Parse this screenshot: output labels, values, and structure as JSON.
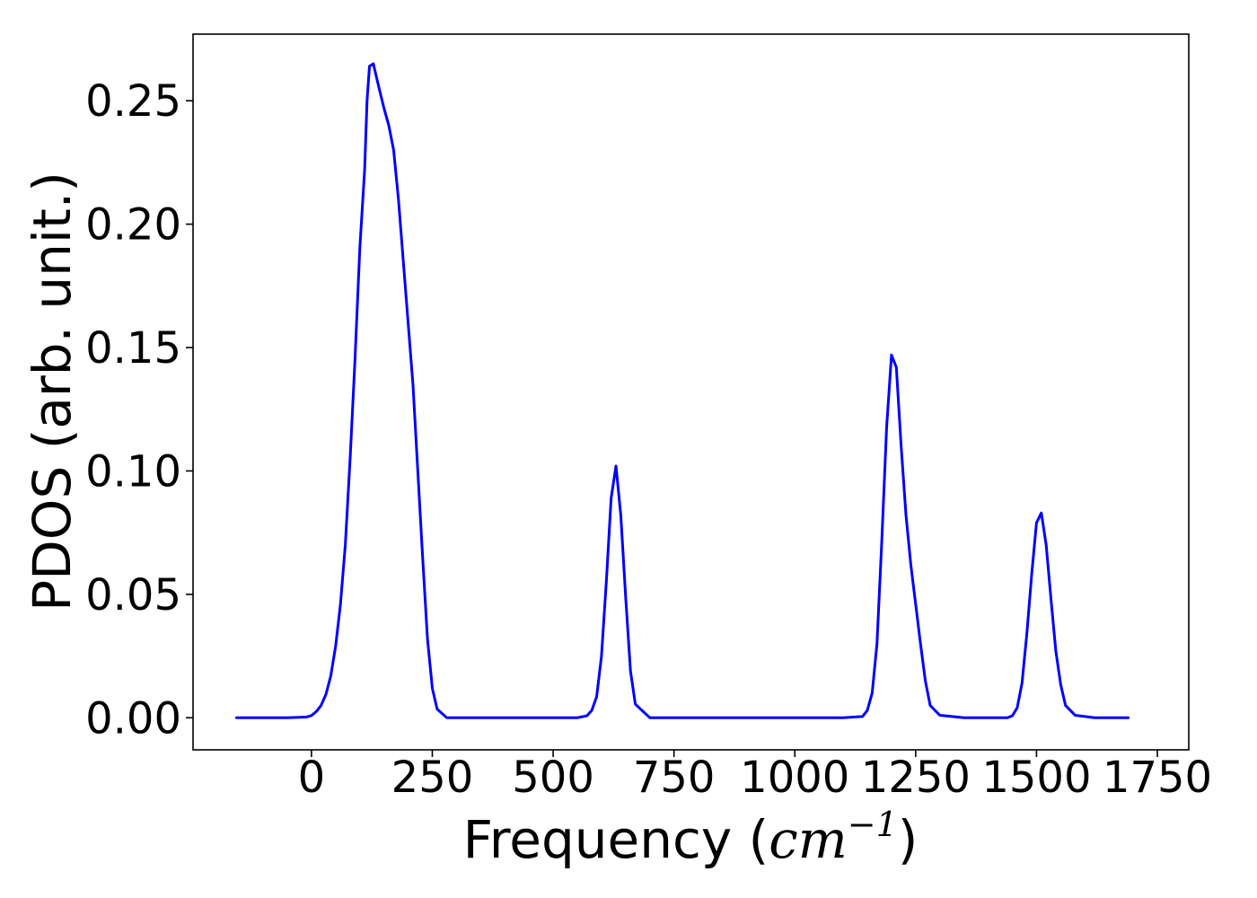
{
  "chart_data": {
    "type": "line",
    "title": "",
    "xlabel": {
      "prefix": "Frequency (",
      "unit_base": "cm",
      "unit_exponent": "−1",
      "suffix": ")"
    },
    "ylabel": "PDOS (arb. unit.)",
    "xlim": [
      -245,
      1815
    ],
    "ylim": [
      -0.013,
      0.277
    ],
    "xticks": [
      0,
      250,
      500,
      750,
      1000,
      1250,
      1500,
      1750
    ],
    "xtick_labels": [
      "0",
      "250",
      "500",
      "750",
      "1000",
      "1250",
      "1500",
      "1750"
    ],
    "yticks": [
      0.0,
      0.05,
      0.1,
      0.15,
      0.2,
      0.25
    ],
    "ytick_labels": [
      "0.00",
      "0.05",
      "0.10",
      "0.15",
      "0.20",
      "0.25"
    ],
    "grid": false,
    "legend": "none",
    "series": [
      {
        "color": "#0000ff",
        "x": [
          -155,
          -100,
          -50,
          -10,
          0,
          10,
          20,
          30,
          40,
          50,
          60,
          70,
          80,
          90,
          100,
          110,
          115,
          120,
          128,
          140,
          150,
          160,
          170,
          180,
          190,
          200,
          210,
          220,
          230,
          240,
          250,
          260,
          280,
          350,
          450,
          550,
          570,
          580,
          590,
          600,
          610,
          620,
          630,
          640,
          650,
          660,
          670,
          700,
          800,
          900,
          1000,
          1100,
          1140,
          1150,
          1160,
          1170,
          1180,
          1190,
          1200,
          1210,
          1220,
          1230,
          1240,
          1250,
          1260,
          1270,
          1280,
          1300,
          1350,
          1400,
          1440,
          1450,
          1460,
          1470,
          1480,
          1490,
          1500,
          1510,
          1520,
          1530,
          1540,
          1550,
          1560,
          1580,
          1620,
          1690
        ],
        "y": [
          0.0,
          0.0,
          0.0,
          0.0003,
          0.0009,
          0.0025,
          0.005,
          0.0095,
          0.017,
          0.029,
          0.046,
          0.07,
          0.105,
          0.145,
          0.19,
          0.222,
          0.25,
          0.264,
          0.265,
          0.255,
          0.247,
          0.24,
          0.23,
          0.21,
          0.185,
          0.16,
          0.135,
          0.1,
          0.065,
          0.032,
          0.012,
          0.0035,
          0.0,
          0.0,
          0.0,
          0.0,
          0.0008,
          0.003,
          0.0085,
          0.025,
          0.055,
          0.089,
          0.102,
          0.082,
          0.049,
          0.019,
          0.0055,
          0.0,
          0.0,
          0.0,
          0.0,
          0.0,
          0.0005,
          0.003,
          0.01,
          0.03,
          0.072,
          0.118,
          0.147,
          0.142,
          0.11,
          0.082,
          0.062,
          0.046,
          0.03,
          0.015,
          0.005,
          0.001,
          0.0,
          0.0,
          0.0,
          0.0008,
          0.004,
          0.014,
          0.034,
          0.058,
          0.079,
          0.083,
          0.07,
          0.048,
          0.027,
          0.0135,
          0.005,
          0.001,
          0.0,
          0.0
        ]
      }
    ]
  }
}
